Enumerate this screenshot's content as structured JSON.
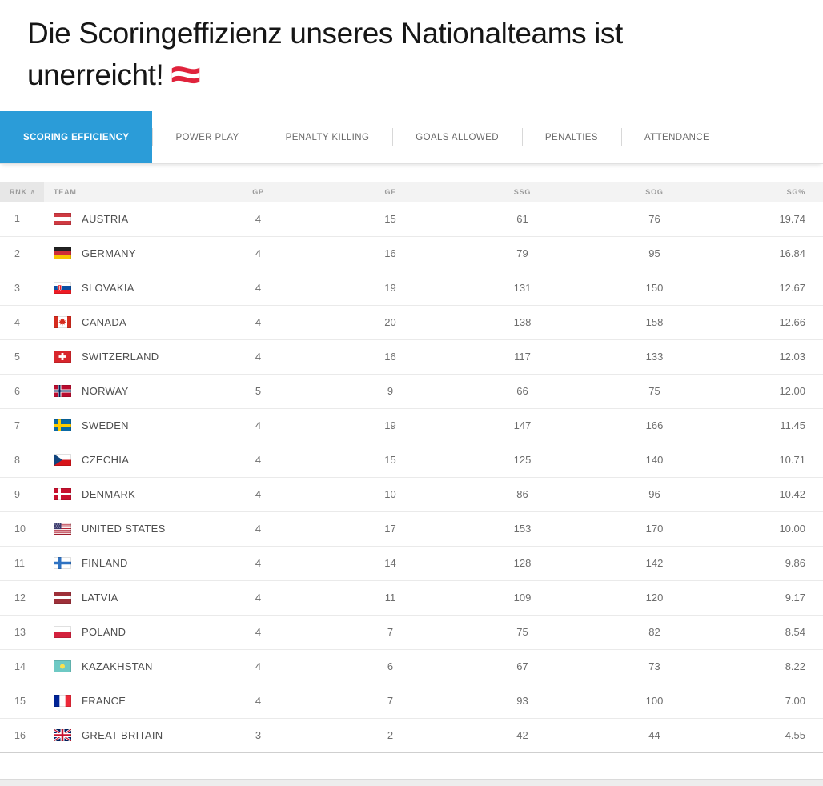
{
  "header": {
    "title_line1": "Die Scoringeffizienz unseres Nationalteams ist",
    "title_line2": "unerreicht!",
    "flag_icon": "austrian-waving-flag"
  },
  "tabs": {
    "active_color": "#2b9cd8",
    "items": [
      {
        "label": "SCORING EFFICIENCY",
        "active": true
      },
      {
        "label": "POWER PLAY",
        "active": false
      },
      {
        "label": "PENALTY KILLING",
        "active": false
      },
      {
        "label": "GOALS ALLOWED",
        "active": false
      },
      {
        "label": "PENALTIES",
        "active": false
      },
      {
        "label": "ATTENDANCE",
        "active": false
      }
    ]
  },
  "table": {
    "sort": {
      "column": "RNK",
      "direction": "asc"
    },
    "columns": [
      {
        "key": "rank",
        "label": "RNK",
        "sorted": true
      },
      {
        "key": "team",
        "label": "TEAM",
        "sorted": false
      },
      {
        "key": "gp",
        "label": "GP",
        "sorted": false
      },
      {
        "key": "gf",
        "label": "GF",
        "sorted": false
      },
      {
        "key": "ssg",
        "label": "SSG",
        "sorted": false
      },
      {
        "key": "sog",
        "label": "SOG",
        "sorted": false
      },
      {
        "key": "sgpct",
        "label": "SG%",
        "sorted": false
      }
    ],
    "rows": [
      {
        "rank": "1",
        "team": "AUSTRIA",
        "flag": "austria",
        "gp": "4",
        "gf": "15",
        "ssg": "61",
        "sog": "76",
        "sgpct": "19.74"
      },
      {
        "rank": "2",
        "team": "GERMANY",
        "flag": "germany",
        "gp": "4",
        "gf": "16",
        "ssg": "79",
        "sog": "95",
        "sgpct": "16.84"
      },
      {
        "rank": "3",
        "team": "SLOVAKIA",
        "flag": "slovakia",
        "gp": "4",
        "gf": "19",
        "ssg": "131",
        "sog": "150",
        "sgpct": "12.67"
      },
      {
        "rank": "4",
        "team": "CANADA",
        "flag": "canada",
        "gp": "4",
        "gf": "20",
        "ssg": "138",
        "sog": "158",
        "sgpct": "12.66"
      },
      {
        "rank": "5",
        "team": "SWITZERLAND",
        "flag": "switzerland",
        "gp": "4",
        "gf": "16",
        "ssg": "117",
        "sog": "133",
        "sgpct": "12.03"
      },
      {
        "rank": "6",
        "team": "NORWAY",
        "flag": "norway",
        "gp": "5",
        "gf": "9",
        "ssg": "66",
        "sog": "75",
        "sgpct": "12.00"
      },
      {
        "rank": "7",
        "team": "SWEDEN",
        "flag": "sweden",
        "gp": "4",
        "gf": "19",
        "ssg": "147",
        "sog": "166",
        "sgpct": "11.45"
      },
      {
        "rank": "8",
        "team": "CZECHIA",
        "flag": "czechia",
        "gp": "4",
        "gf": "15",
        "ssg": "125",
        "sog": "140",
        "sgpct": "10.71"
      },
      {
        "rank": "9",
        "team": "DENMARK",
        "flag": "denmark",
        "gp": "4",
        "gf": "10",
        "ssg": "86",
        "sog": "96",
        "sgpct": "10.42"
      },
      {
        "rank": "10",
        "team": "UNITED STATES",
        "flag": "usa",
        "gp": "4",
        "gf": "17",
        "ssg": "153",
        "sog": "170",
        "sgpct": "10.00"
      },
      {
        "rank": "11",
        "team": "FINLAND",
        "flag": "finland",
        "gp": "4",
        "gf": "14",
        "ssg": "128",
        "sog": "142",
        "sgpct": "9.86"
      },
      {
        "rank": "12",
        "team": "LATVIA",
        "flag": "latvia",
        "gp": "4",
        "gf": "11",
        "ssg": "109",
        "sog": "120",
        "sgpct": "9.17"
      },
      {
        "rank": "13",
        "team": "POLAND",
        "flag": "poland",
        "gp": "4",
        "gf": "7",
        "ssg": "75",
        "sog": "82",
        "sgpct": "8.54"
      },
      {
        "rank": "14",
        "team": "KAZAKHSTAN",
        "flag": "kazakhstan",
        "gp": "4",
        "gf": "6",
        "ssg": "67",
        "sog": "73",
        "sgpct": "8.22"
      },
      {
        "rank": "15",
        "team": "FRANCE",
        "flag": "france",
        "gp": "4",
        "gf": "7",
        "ssg": "93",
        "sog": "100",
        "sgpct": "7.00"
      },
      {
        "rank": "16",
        "team": "GREAT BRITAIN",
        "flag": "gbr",
        "gp": "3",
        "gf": "2",
        "ssg": "42",
        "sog": "44",
        "sgpct": "4.55"
      }
    ]
  }
}
